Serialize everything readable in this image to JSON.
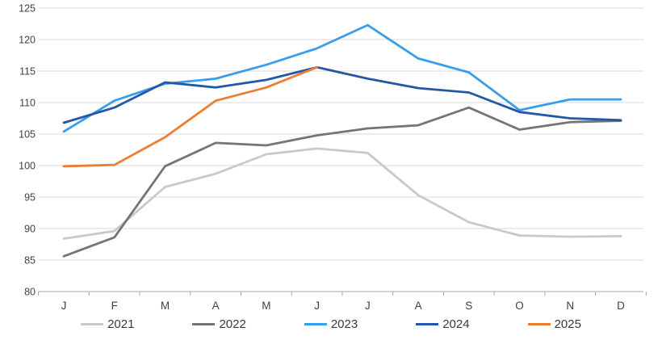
{
  "chart_data": {
    "type": "line",
    "title": "",
    "xlabel": "",
    "ylabel": "",
    "grid": true,
    "legend_position": "bottom",
    "x_categories": [
      "J",
      "F",
      "M",
      "A",
      "M",
      "J",
      "J",
      "A",
      "S",
      "O",
      "N",
      "D"
    ],
    "y_axis": {
      "min": 80,
      "max": 125,
      "step": 5,
      "tick_labels": [
        "80",
        "85",
        "90",
        "95",
        "100",
        "105",
        "110",
        "115",
        "120",
        "125"
      ]
    },
    "series": [
      {
        "name": "2021",
        "color": "#c9c9c9",
        "values": [
          88.4,
          89.6,
          96.6,
          98.7,
          101.8,
          102.7,
          102.0,
          95.3,
          91.0,
          88.9,
          88.7,
          88.8
        ]
      },
      {
        "name": "2022",
        "color": "#757575",
        "values": [
          85.6,
          88.6,
          99.9,
          103.6,
          103.2,
          104.8,
          105.9,
          106.4,
          109.2,
          105.7,
          106.9,
          107.1
        ]
      },
      {
        "name": "2023",
        "color": "#3a9dea",
        "values": [
          105.4,
          110.3,
          113.0,
          113.8,
          116.0,
          118.6,
          122.3,
          117.0,
          114.8,
          108.8,
          110.5,
          110.5
        ]
      },
      {
        "name": "2024",
        "color": "#2457a7",
        "values": [
          106.8,
          109.2,
          113.2,
          112.4,
          113.6,
          115.6,
          113.8,
          112.3,
          111.6,
          108.5,
          107.5,
          107.2
        ]
      },
      {
        "name": "2025",
        "color": "#ed7d31",
        "values": [
          99.9,
          100.1,
          104.5,
          110.3,
          112.4,
          115.6
        ]
      }
    ]
  }
}
